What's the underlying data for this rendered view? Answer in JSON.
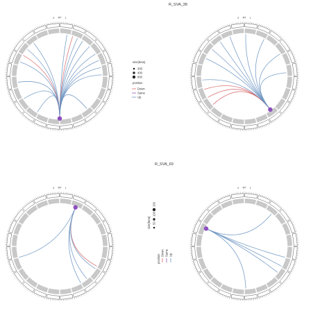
{
  "figure": {
    "panel_titles": [
      "",
      "R_SVA_38",
      "R_SVA_69",
      ""
    ],
    "chromosome_labels": [
      "X",
      "MT",
      "1"
    ]
  },
  "chart_data": [
    {
      "type": "chord",
      "title": "",
      "hub_angle_deg": 180,
      "links": [
        {
          "to_deg": 10,
          "position": "Up"
        },
        {
          "to_deg": 18,
          "position": "Down"
        },
        {
          "to_deg": 25,
          "position": "Up"
        },
        {
          "to_deg": 33,
          "position": "Up"
        },
        {
          "to_deg": 45,
          "position": "Up"
        },
        {
          "to_deg": 58,
          "position": "Up"
        },
        {
          "to_deg": 68,
          "position": "Up"
        },
        {
          "to_deg": 78,
          "position": "Up"
        },
        {
          "to_deg": 88,
          "position": "Up"
        },
        {
          "to_deg": 140,
          "position": "Up"
        },
        {
          "to_deg": 212,
          "position": "Up"
        },
        {
          "to_deg": 238,
          "position": "Up"
        },
        {
          "to_deg": 262,
          "position": "Up"
        },
        {
          "to_deg": 290,
          "position": "Up"
        },
        {
          "to_deg": 300,
          "position": "Down"
        },
        {
          "to_deg": 310,
          "position": "Up"
        },
        {
          "to_deg": 322,
          "position": "Up"
        }
      ]
    },
    {
      "type": "chord",
      "title": "R_SVA_38",
      "hub_angle_deg": 142,
      "links": [
        {
          "to_deg": 2,
          "position": "Up"
        },
        {
          "to_deg": 28,
          "position": "Up"
        },
        {
          "to_deg": 58,
          "position": "Up"
        },
        {
          "to_deg": 85,
          "position": "Up"
        },
        {
          "to_deg": 228,
          "position": "Down"
        },
        {
          "to_deg": 240,
          "position": "Down"
        },
        {
          "to_deg": 252,
          "position": "Down"
        },
        {
          "to_deg": 265,
          "position": "Up"
        },
        {
          "to_deg": 295,
          "position": "Up"
        },
        {
          "to_deg": 310,
          "position": "Up"
        },
        {
          "to_deg": 325,
          "position": "Up"
        },
        {
          "to_deg": 340,
          "position": "Up"
        }
      ]
    },
    {
      "type": "chord",
      "title": "R_SVA_69",
      "hub_angle_deg": 22,
      "links": [
        {
          "to_deg": 118,
          "position": "Down"
        },
        {
          "to_deg": 122,
          "position": "Up"
        },
        {
          "to_deg": 140,
          "position": "Up"
        },
        {
          "to_deg": 150,
          "position": "Up"
        },
        {
          "to_deg": 255,
          "position": "Up"
        }
      ]
    },
    {
      "type": "chord",
      "title": "",
      "hub_angle_deg": 295,
      "links": [
        {
          "to_deg": 40,
          "position": "Up"
        },
        {
          "to_deg": 105,
          "position": "Up"
        },
        {
          "to_deg": 118,
          "position": "Up"
        },
        {
          "to_deg": 128,
          "position": "Up"
        },
        {
          "to_deg": 178,
          "position": "Up"
        }
      ]
    }
  ],
  "legends": [
    {
      "size_title": "size(beta)",
      "size_values": [
        "300",
        "400",
        "600"
      ],
      "position_title": "position",
      "position_values": [
        "Down",
        "Same",
        "Up"
      ]
    },
    {
      "size_title": "size(beta)",
      "size_values": [
        "50",
        "100",
        "150"
      ],
      "position_title": "position",
      "position_values": [
        "Down",
        "Same",
        "Up"
      ]
    }
  ],
  "colors": {
    "Up": "#6a93c2",
    "Down": "#d9686a",
    "Same": "#8f5bb5",
    "hub": "#8e4fbf",
    "ring": "#c8c8c8",
    "outline": "#555555"
  }
}
